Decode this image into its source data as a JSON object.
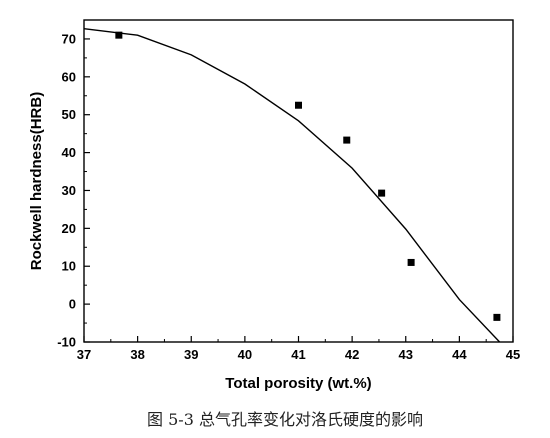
{
  "chart_data": {
    "type": "scatter",
    "title": "",
    "xlabel": "Total porosity (wt.%)",
    "ylabel": "Rockwell hardness(HRB)",
    "xlim": [
      37,
      45
    ],
    "ylim": [
      -10,
      75
    ],
    "xticks": [
      37,
      38,
      39,
      40,
      41,
      42,
      43,
      44,
      45
    ],
    "yticks": [
      -10,
      0,
      10,
      20,
      30,
      40,
      50,
      60,
      70
    ],
    "grid": false,
    "legend": "none",
    "series": [
      {
        "marker": "square",
        "points": [
          {
            "x": 37.65,
            "y": 71.0
          },
          {
            "x": 41.0,
            "y": 52.5
          },
          {
            "x": 41.9,
            "y": 43.3
          },
          {
            "x": 42.55,
            "y": 29.3
          },
          {
            "x": 43.1,
            "y": 11.0
          },
          {
            "x": 44.7,
            "y": -3.5
          }
        ]
      }
    ],
    "fit_curve": {
      "type": "quadratic",
      "points": [
        {
          "x": 37.0,
          "y": 72.7
        },
        {
          "x": 38.0,
          "y": 71.0
        },
        {
          "x": 39.0,
          "y": 65.8
        },
        {
          "x": 40.0,
          "y": 58.1
        },
        {
          "x": 41.0,
          "y": 48.4
        },
        {
          "x": 42.0,
          "y": 35.9
        },
        {
          "x": 43.0,
          "y": 19.8
        },
        {
          "x": 44.0,
          "y": 1.2
        },
        {
          "x": 44.75,
          "y": -10.0
        }
      ]
    }
  },
  "caption": "图 5-3  总气孔率变化对洛氏硬度的影响",
  "colors": {
    "axis": "#000000",
    "marker": "#000000",
    "curve": "#000000"
  }
}
